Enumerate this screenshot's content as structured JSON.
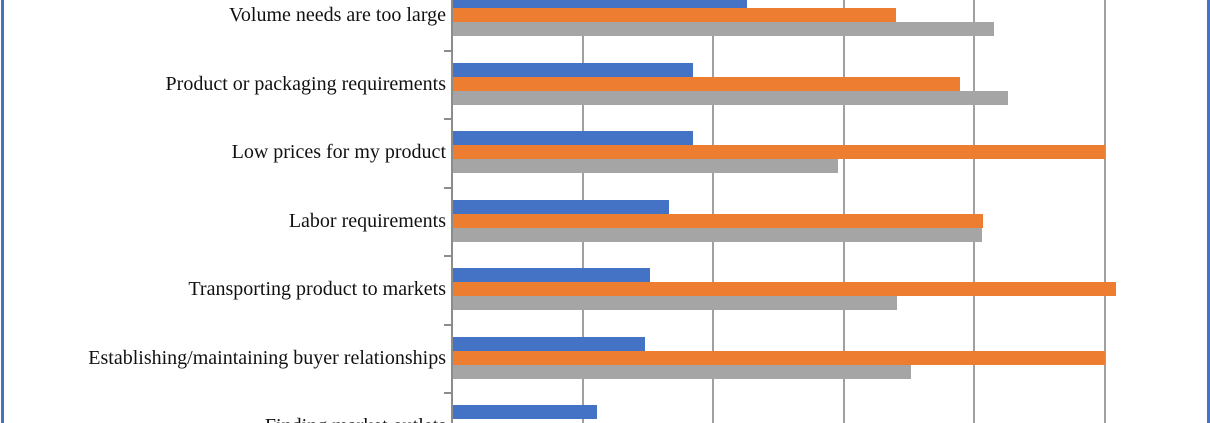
{
  "chart_data": {
    "type": "bar",
    "orientation": "horizontal",
    "title": "",
    "xlabel": "",
    "ylabel": "",
    "categories": [
      "Volume needs are too large",
      "Product or packaging requirements",
      "Low prices for my product",
      "Labor requirements",
      "Transporting product to markets",
      "Establishing/maintaining buyer relationships",
      "Finding market outlets"
    ],
    "series": [
      {
        "name": "blue",
        "color": "#4472C4",
        "values": [
          2.26,
          1.85,
          1.85,
          1.66,
          1.52,
          1.48,
          1.11
        ]
      },
      {
        "name": "orange",
        "color": "#ED7D31",
        "values": [
          3.4,
          3.89,
          5.0,
          4.07,
          5.09,
          5.0,
          null
        ]
      },
      {
        "name": "gray",
        "color": "#A5A5A5",
        "values": [
          4.15,
          4.26,
          2.96,
          4.06,
          3.41,
          3.52,
          null
        ]
      }
    ],
    "axis": {
      "tick_labels_visible": false,
      "legend_visible": false,
      "gridline_interval": 1,
      "xlim_visible": [
        0,
        5.81
      ],
      "grid": true
    },
    "crop_note": "chart cropped: top bar row, bottom category and value axis cut off at image edges"
  },
  "colors": {
    "chart_border": "#4472C4",
    "gridline": "#a0a0a0",
    "axis_line": "#8c8c8c",
    "label_text": "#111111",
    "background": "#ffffff"
  }
}
